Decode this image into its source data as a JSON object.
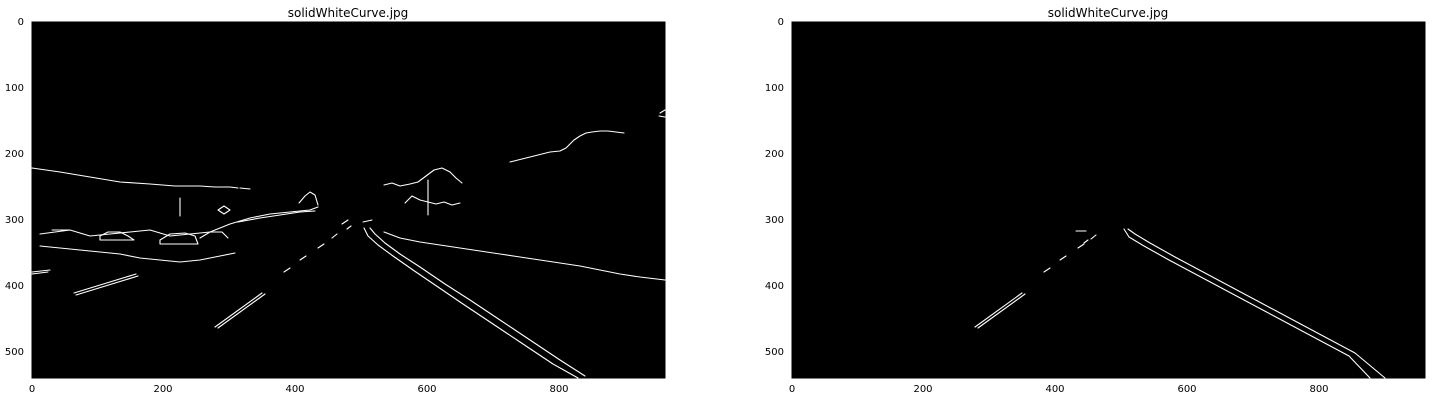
{
  "figure": {
    "panels": [
      {
        "id": "left",
        "title": "solidWhiteCurve.jpg",
        "x_ticks": [
          "0",
          "200",
          "400",
          "600",
          "800"
        ],
        "y_ticks": [
          "0",
          "100",
          "200",
          "300",
          "400",
          "500"
        ],
        "background": "#000000",
        "content": "canny edges, full frame"
      },
      {
        "id": "right",
        "title": "solidWhiteCurve.jpg",
        "x_ticks": [
          "0",
          "200",
          "400",
          "600",
          "800"
        ],
        "y_ticks": [
          "0",
          "100",
          "200",
          "300",
          "400",
          "500"
        ],
        "background": "#000000",
        "content": "canny edges, region of interest"
      }
    ]
  }
}
